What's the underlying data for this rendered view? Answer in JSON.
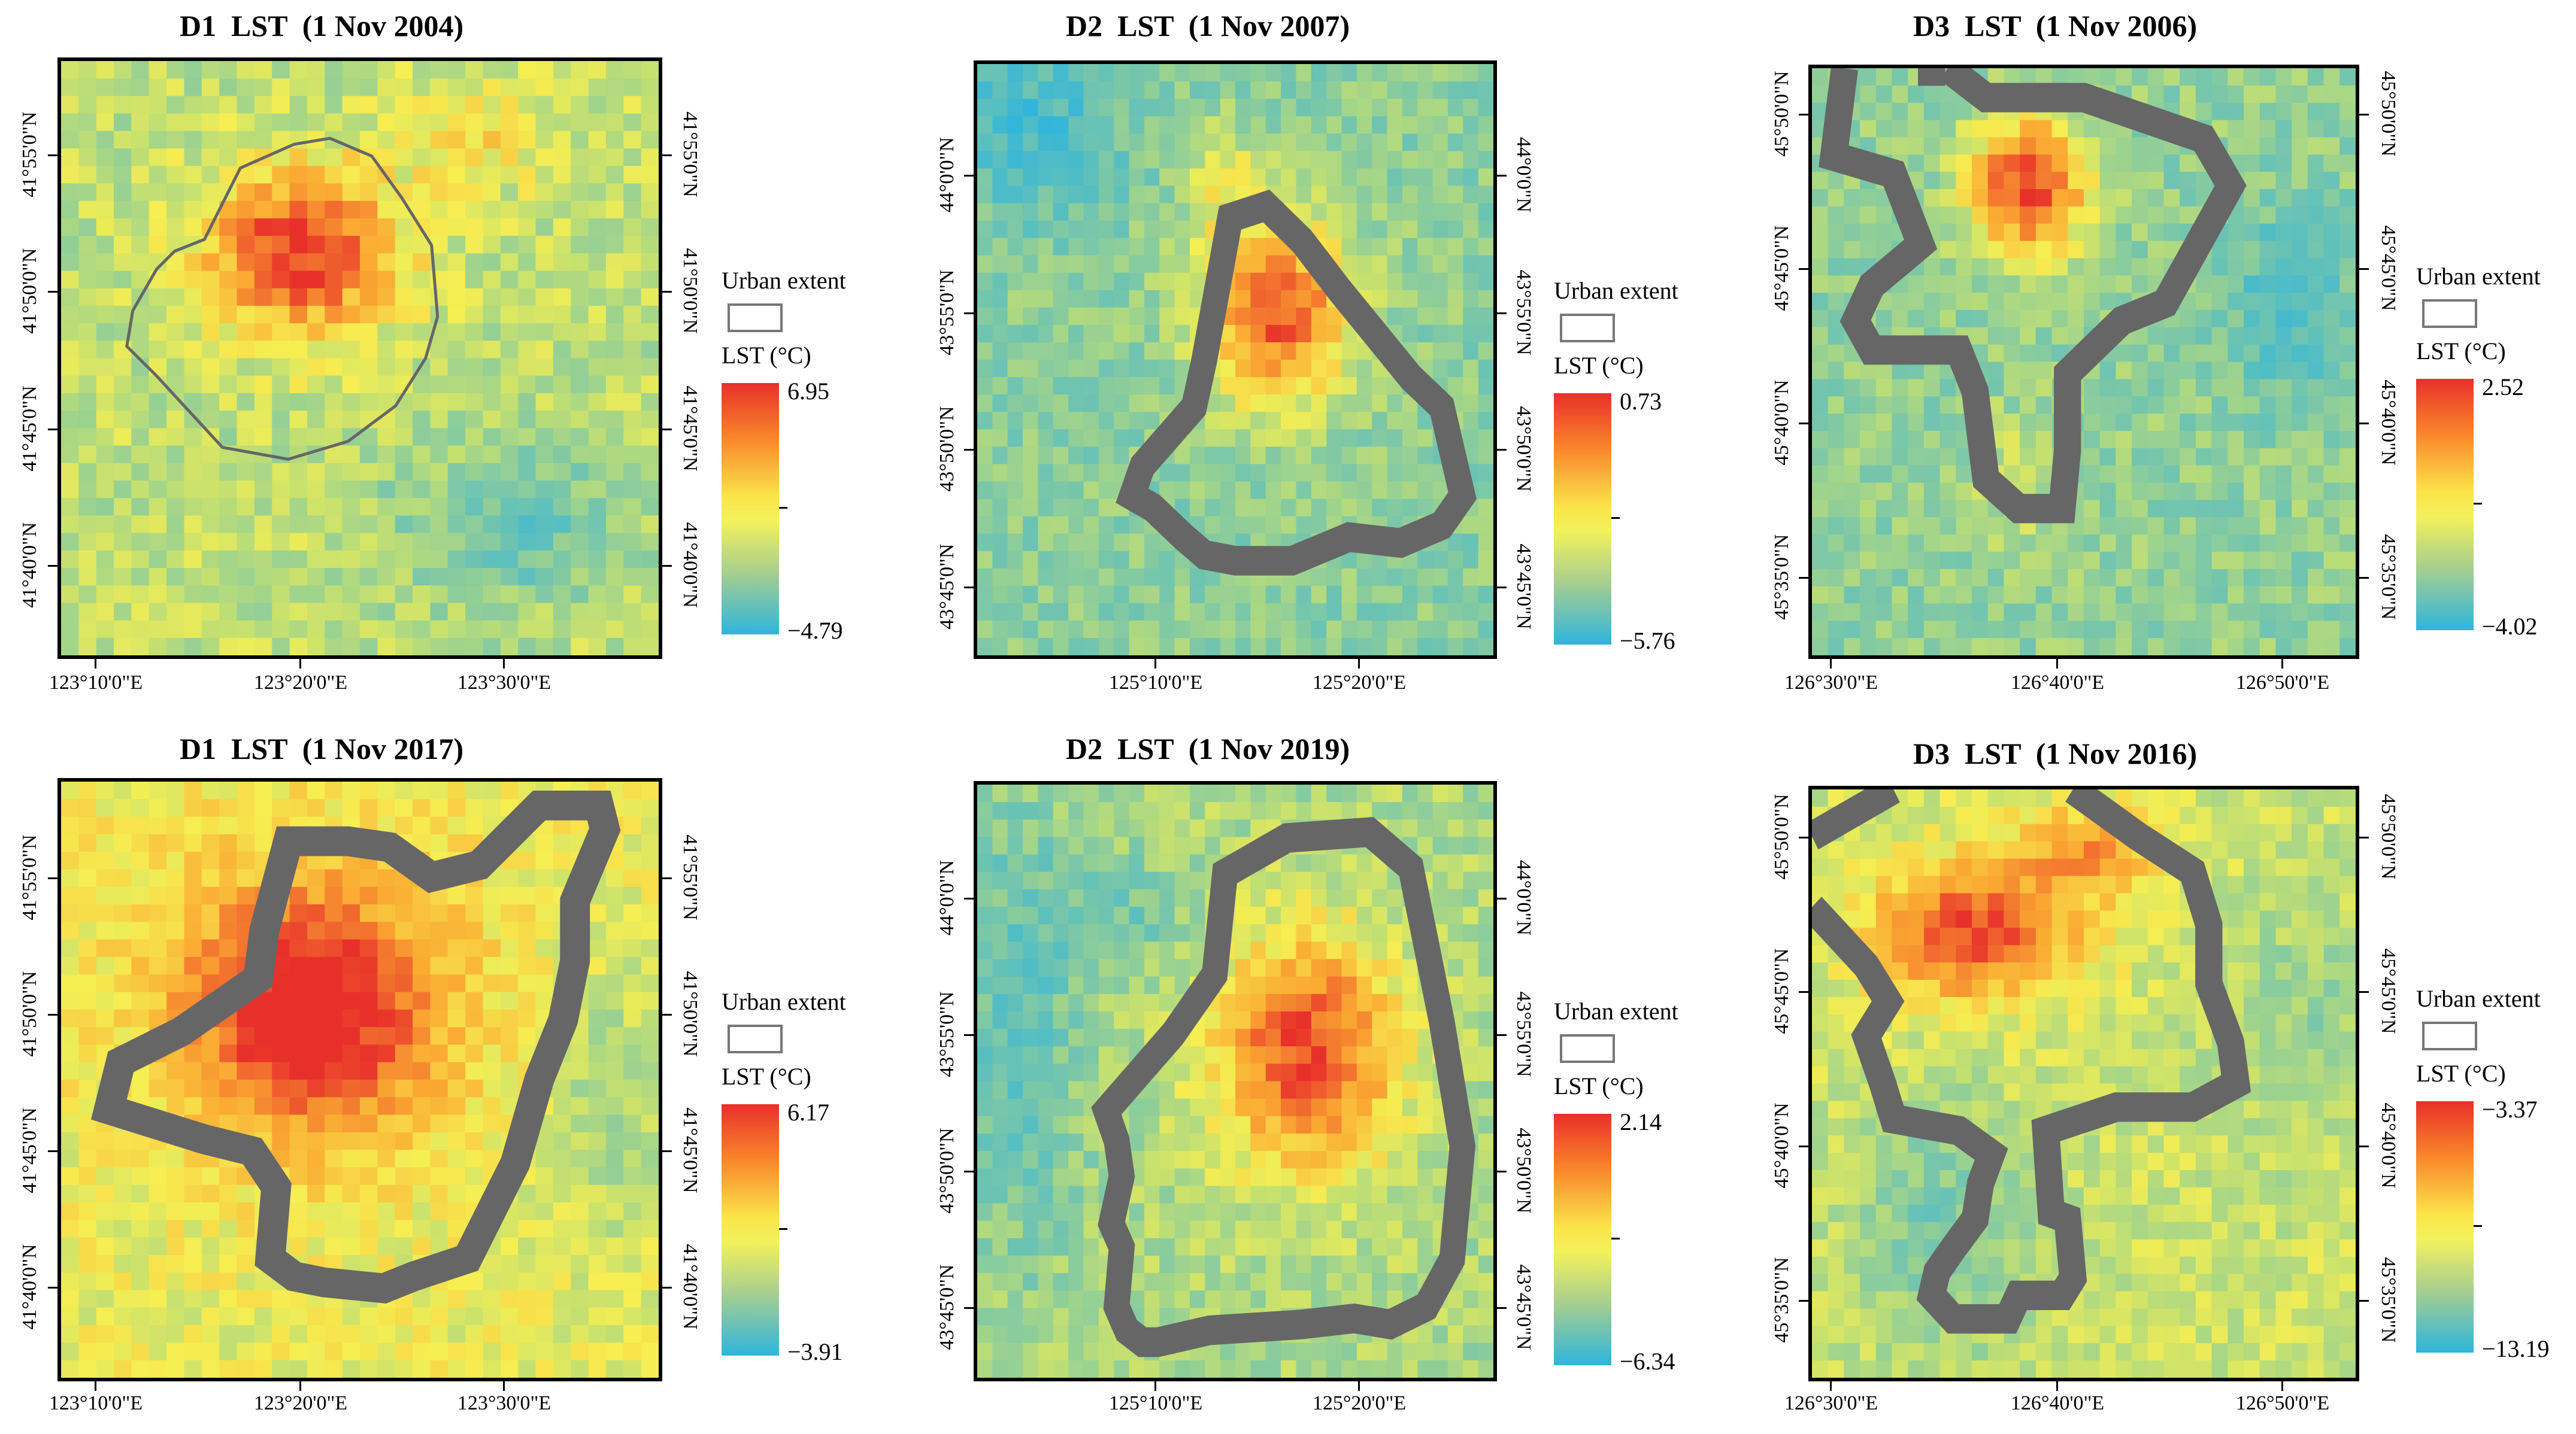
{
  "legend_labels": {
    "urban": "Urban extent",
    "lst": "LST (°C)"
  },
  "panels": [
    {
      "title": "D1  LST  (1 Nov 2004)",
      "max": "6.95",
      "min": "−4.79",
      "lat": [
        "41°55'0\"N",
        "41°50'0\"N",
        "41°45'0\"N",
        "41°40'0\"N"
      ],
      "lon": [
        "123°10'0\"E",
        "123°20'0\"E",
        "123°30'0\"E"
      ]
    },
    {
      "title": "D2  LST  (1 Nov 2007)",
      "max": "0.73",
      "min": "−5.76",
      "lat": [
        "44°0'0\"N",
        "43°55'0\"N",
        "43°50'0\"N",
        "43°45'0\"N"
      ],
      "lon": [
        "125°10'0\"E",
        "125°20'0\"E"
      ]
    },
    {
      "title": "D3  LST  (1 Nov 2006)",
      "max": "2.52",
      "min": "−4.02",
      "lat": [
        "45°50'0\"N",
        "45°45'0\"N",
        "45°40'0\"N",
        "45°35'0\"N"
      ],
      "lon": [
        "126°30'0\"E",
        "126°40'0\"E",
        "126°50'0\"E"
      ]
    },
    {
      "title": "D1  LST  (1 Nov 2017)",
      "max": "6.17",
      "min": "−3.91",
      "lat": [
        "41°55'0\"N",
        "41°50'0\"N",
        "41°45'0\"N",
        "41°40'0\"N"
      ],
      "lon": [
        "123°10'0\"E",
        "123°20'0\"E",
        "123°30'0\"E"
      ]
    },
    {
      "title": "D2  LST  (1 Nov 2019)",
      "max": "2.14",
      "min": "−6.34",
      "lat": [
        "44°0'0\"N",
        "43°55'0\"N",
        "43°50'0\"N",
        "43°45'0\"N"
      ],
      "lon": [
        "125°10'0\"E",
        "125°20'0\"E"
      ]
    },
    {
      "title": "D3  LST  (1 Nov 2016)",
      "max": "−3.37",
      "min": "−13.19",
      "lat": [
        "45°50'0\"N",
        "45°45'0\"N",
        "45°40'0\"N",
        "45°35'0\"N"
      ],
      "lon": [
        "126°30'0\"E",
        "126°40'0\"E",
        "126°50'0\"E"
      ]
    }
  ]
}
